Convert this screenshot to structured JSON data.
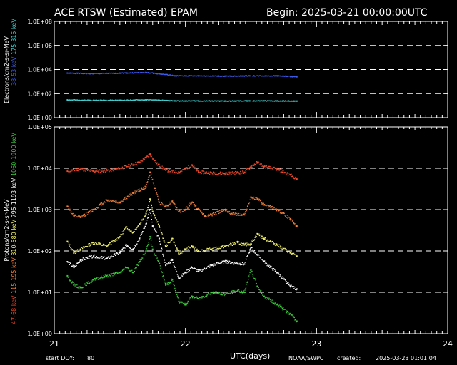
{
  "header": {
    "title": "ACE RTSW (Estimated) EPAM",
    "begin": "Begin: 2025-03-21 00:00:00UTC"
  },
  "footer": {
    "start_doy": "start DOY:",
    "doy_value": "80",
    "x_title": "UTC(days)",
    "source": "NOAA/SWPC",
    "created_label": "created:",
    "created_value": "2025-03-23 01:01:04"
  },
  "colors": {
    "background": "#000000",
    "axes": "#ffffff",
    "grid": "#ffffff",
    "electron_38_53": "#3d5cf0",
    "electron_175_315": "#40d0d0",
    "proton_47_68": "#f04a2a",
    "proton_115_195": "#f0803c",
    "proton_310_580": "#f0f070",
    "proton_795_1193": "#ffffff",
    "proton_1060_1900": "#3ccc3c"
  },
  "chart_data": [
    {
      "type": "scatter",
      "panel": "electrons",
      "ylabel": "Electrons/cm2-s-sr-MeV",
      "yscale": "log",
      "ylim": [
        1,
        100000000
      ],
      "y_tick_labels": [
        "1.0E+00",
        "1.0E+02",
        "1.0E+04",
        "1.0E+06",
        "1.0E+08"
      ],
      "xlim": [
        21,
        24
      ],
      "grid": "dashed",
      "gaps_utc_days": [
        [
          21.92,
          21.93
        ],
        [
          22.49,
          22.51
        ]
      ],
      "series": [
        {
          "name": "38-53 keV",
          "color": "#3d5cf0",
          "x": [
            21.1,
            21.3,
            21.5,
            21.7,
            21.8,
            21.92,
            22.1,
            22.3,
            22.49,
            22.52,
            22.7,
            22.85
          ],
          "y": [
            5000,
            4500,
            5000,
            5500,
            4500,
            3000,
            3000,
            2800,
            3000,
            3000,
            3000,
            2500
          ]
        },
        {
          "name": "175-315 keV",
          "color": "#40d0d0",
          "x": [
            21.1,
            21.3,
            21.5,
            21.7,
            21.8,
            21.92,
            22.1,
            22.3,
            22.49,
            22.52,
            22.7,
            22.85
          ],
          "y": [
            30,
            28,
            28,
            30,
            28,
            25,
            25,
            24,
            25,
            25,
            25,
            24
          ]
        }
      ]
    },
    {
      "type": "scatter",
      "panel": "protons",
      "ylabel": "Protons/cm2-s-sr-MeV",
      "yscale": "log",
      "ylim": [
        1,
        100000
      ],
      "y_tick_labels": [
        "1.0E+00",
        "1.0E+01",
        "1.0E+02",
        "1.0E+03",
        "1.0E+04",
        "1.0E+05"
      ],
      "xlim": [
        21,
        24
      ],
      "x_tick_labels": [
        "21",
        "22",
        "23",
        "24"
      ],
      "xlabel": "UTC(days)",
      "grid": "dashed",
      "series": [
        {
          "name": "47-68 keV",
          "color": "#f04a2a",
          "x": [
            21.1,
            21.2,
            21.3,
            21.45,
            21.55,
            21.65,
            21.7,
            21.73,
            21.78,
            21.85,
            21.95,
            22.05,
            22.1,
            22.3,
            22.45,
            22.5,
            22.55,
            22.6,
            22.7,
            22.8,
            22.85
          ],
          "y": [
            8500,
            9500,
            8500,
            9000,
            11000,
            14000,
            18000,
            22000,
            13000,
            9000,
            8000,
            12000,
            8000,
            7500,
            8000,
            11000,
            14000,
            11000,
            9500,
            7000,
            5500
          ]
        },
        {
          "name": "115-195 keV",
          "color": "#f0803c",
          "x": [
            21.1,
            21.15,
            21.2,
            21.3,
            21.4,
            21.5,
            21.6,
            21.7,
            21.73,
            21.8,
            21.85,
            21.9,
            21.95,
            22.0,
            22.05,
            22.1,
            22.15,
            22.2,
            22.3,
            22.35,
            22.45,
            22.5,
            22.55,
            22.6,
            22.7,
            22.8,
            22.85
          ],
          "y": [
            1200,
            700,
            650,
            1000,
            1700,
            1500,
            2500,
            3500,
            8000,
            1500,
            1200,
            1600,
            900,
            1000,
            1500,
            1000,
            700,
            750,
            1000,
            800,
            750,
            2000,
            1800,
            1300,
            1000,
            600,
            400
          ]
        },
        {
          "name": "310-580 keV",
          "color": "#f0f070",
          "x": [
            21.1,
            21.15,
            21.2,
            21.3,
            21.4,
            21.5,
            21.55,
            21.6,
            21.65,
            21.7,
            21.73,
            21.75,
            21.8,
            21.85,
            21.9,
            21.95,
            22.0,
            22.05,
            22.1,
            22.2,
            22.3,
            22.4,
            22.45,
            22.5,
            22.55,
            22.6,
            22.7,
            22.8,
            22.85
          ],
          "y": [
            170,
            90,
            110,
            160,
            130,
            220,
            380,
            280,
            450,
            800,
            1800,
            900,
            400,
            130,
            200,
            85,
            110,
            130,
            100,
            110,
            130,
            160,
            140,
            150,
            260,
            200,
            140,
            90,
            75
          ]
        },
        {
          "name": "795-1193 keV",
          "color": "#ffffff",
          "x": [
            21.1,
            21.15,
            21.2,
            21.3,
            21.4,
            21.5,
            21.55,
            21.6,
            21.65,
            21.7,
            21.73,
            21.75,
            21.8,
            21.85,
            21.9,
            21.95,
            22.0,
            22.05,
            22.1,
            22.2,
            22.3,
            22.4,
            22.45,
            22.5,
            22.55,
            22.6,
            22.7,
            22.8,
            22.85
          ],
          "y": [
            55,
            40,
            60,
            75,
            65,
            90,
            140,
            110,
            200,
            450,
            1000,
            400,
            200,
            45,
            60,
            22,
            30,
            40,
            32,
            45,
            55,
            50,
            48,
            120,
            80,
            55,
            30,
            14,
            12
          ]
        },
        {
          "name": "1060-1900 keV",
          "color": "#3ccc3c",
          "x": [
            21.1,
            21.15,
            21.2,
            21.3,
            21.4,
            21.5,
            21.55,
            21.6,
            21.65,
            21.7,
            21.73,
            21.75,
            21.8,
            21.85,
            21.9,
            21.95,
            22.0,
            22.05,
            22.1,
            22.2,
            22.3,
            22.4,
            22.45,
            22.5,
            22.55,
            22.6,
            22.7,
            22.8,
            22.85
          ],
          "y": [
            25,
            15,
            13,
            20,
            25,
            30,
            40,
            30,
            55,
            100,
            220,
            110,
            50,
            15,
            20,
            6,
            5,
            8,
            7,
            10,
            9,
            11,
            10,
            35,
            14,
            8,
            5,
            3,
            2
          ]
        }
      ]
    }
  ]
}
